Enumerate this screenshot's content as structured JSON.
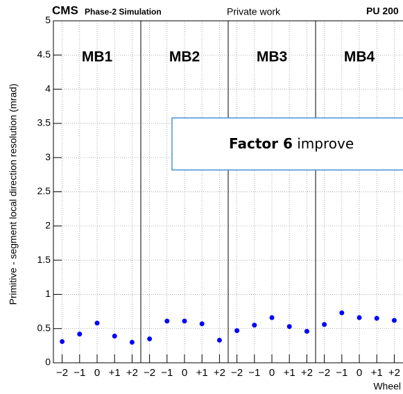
{
  "chart_data": {
    "type": "scatter",
    "header": {
      "experiment": "CMS",
      "status": "Phase-2 Simulation",
      "note": "Private work",
      "pileup": "PU 200"
    },
    "ylabel": "Primitive - segment local direction resolution (mrad)",
    "xlabel": "Wheel",
    "stations": [
      "MB1",
      "MB2",
      "MB3",
      "MB4"
    ],
    "annotation": {
      "bold": "Factor 6",
      "text": "improve"
    },
    "categories": [
      "−2",
      "−1",
      "0",
      "+1",
      "+2",
      "−2",
      "−1",
      "0",
      "+1",
      "+2",
      "−2",
      "−1",
      "0",
      "+1",
      "+2",
      "−2",
      "−1",
      "0",
      "+1",
      "+2"
    ],
    "values": [
      0.31,
      0.42,
      0.58,
      0.39,
      0.3,
      0.35,
      0.61,
      0.61,
      0.57,
      0.33,
      0.47,
      0.55,
      0.66,
      0.53,
      0.46,
      0.56,
      0.73,
      0.66,
      0.65,
      0.62
    ],
    "color": "#0000ff",
    "ylim": [
      0,
      5
    ],
    "yticks": [
      0,
      0.5,
      1,
      1.5,
      2,
      2.5,
      3,
      3.5,
      4,
      4.5,
      5
    ],
    "grid": true
  }
}
